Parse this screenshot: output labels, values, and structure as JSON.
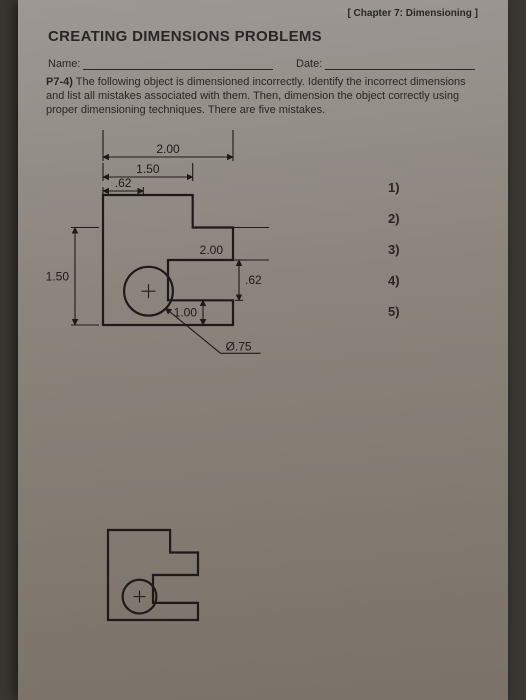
{
  "chapter_header": "[ Chapter 7: Dimensioning ]",
  "title": "CREATING DIMENSIONS PROBLEMS",
  "name_label": "Name:",
  "date_label": "Date:",
  "problem_number": "P7-4)",
  "problem_text": "The following object is dimensioned incorrectly. Identify the incorrect dimensions and list all mistakes associated with them. Then, dimension the object correctly using proper dimensioning techniques. There are five mistakes.",
  "answers": [
    "1)",
    "2)",
    "3)",
    "4)",
    "5)"
  ],
  "drawing": {
    "stroke": "#1e1a18",
    "stroke_width": 2.2,
    "thin_stroke_width": 1.1,
    "font_size": 12,
    "main": {
      "dim_top_overall": "2.00",
      "dim_top_step": "1.50",
      "dim_top_small": ".62",
      "dim_left": "1.50",
      "dim_right_a": "2.00",
      "dim_right_b": ".62",
      "dim_right_c": "1.00",
      "dia_label": "Ø.75"
    }
  }
}
